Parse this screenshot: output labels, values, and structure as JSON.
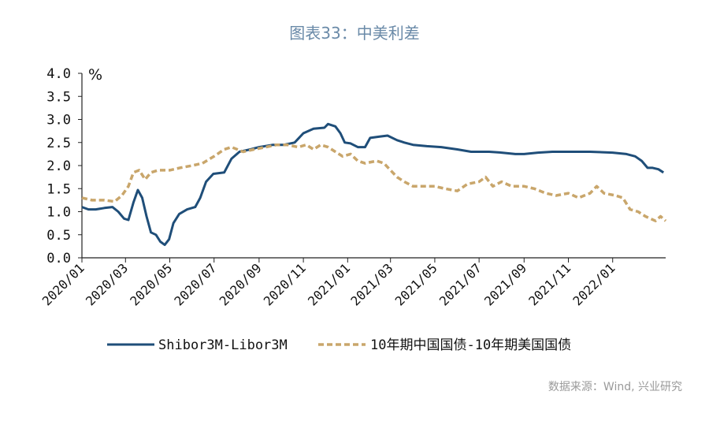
{
  "title": "图表33：中美利差",
  "source": "数据来源：Wind, 兴业研究",
  "colors": {
    "series1": "#1f4e79",
    "series2": "#c9a66b",
    "axis": "#222222"
  },
  "chart_data": {
    "type": "line",
    "ylabel": "%",
    "ylim": [
      0.0,
      4.0
    ],
    "yticks": [
      "4.0",
      "3.5",
      "3.0",
      "2.5",
      "2.0",
      "1.5",
      "1.0",
      "0.5",
      "0.0"
    ],
    "xlim": [
      "2020-01-01",
      "2022-03-15"
    ],
    "xticks": [
      {
        "date": "2020-01-01",
        "label": "2020/01"
      },
      {
        "date": "2020-03-01",
        "label": "2020/03"
      },
      {
        "date": "2020-05-01",
        "label": "2020/05"
      },
      {
        "date": "2020-07-01",
        "label": "2020/07"
      },
      {
        "date": "2020-09-01",
        "label": "2020/09"
      },
      {
        "date": "2020-11-01",
        "label": "2020/11"
      },
      {
        "date": "2021-01-01",
        "label": "2021/01"
      },
      {
        "date": "2021-03-01",
        "label": "2021/03"
      },
      {
        "date": "2021-05-01",
        "label": "2021/05"
      },
      {
        "date": "2021-07-01",
        "label": "2021/07"
      },
      {
        "date": "2021-09-01",
        "label": "2021/09"
      },
      {
        "date": "2021-11-01",
        "label": "2021/11"
      },
      {
        "date": "2022-01-01",
        "label": "2022/01"
      }
    ],
    "legend_position": "bottom",
    "series": [
      {
        "name": "Shibor3M-Libor3M",
        "style": "solid",
        "points": [
          [
            "2020-01-01",
            1.1
          ],
          [
            "2020-01-10",
            1.05
          ],
          [
            "2020-01-20",
            1.05
          ],
          [
            "2020-02-01",
            1.08
          ],
          [
            "2020-02-12",
            1.1
          ],
          [
            "2020-02-20",
            1.0
          ],
          [
            "2020-02-28",
            0.85
          ],
          [
            "2020-03-05",
            0.82
          ],
          [
            "2020-03-12",
            1.2
          ],
          [
            "2020-03-18",
            1.47
          ],
          [
            "2020-03-24",
            1.3
          ],
          [
            "2020-03-30",
            0.9
          ],
          [
            "2020-04-05",
            0.55
          ],
          [
            "2020-04-12",
            0.5
          ],
          [
            "2020-04-18",
            0.35
          ],
          [
            "2020-04-24",
            0.28
          ],
          [
            "2020-04-30",
            0.4
          ],
          [
            "2020-05-06",
            0.75
          ],
          [
            "2020-05-14",
            0.95
          ],
          [
            "2020-05-25",
            1.05
          ],
          [
            "2020-06-05",
            1.1
          ],
          [
            "2020-06-12",
            1.3
          ],
          [
            "2020-06-20",
            1.65
          ],
          [
            "2020-06-30",
            1.82
          ],
          [
            "2020-07-15",
            1.85
          ],
          [
            "2020-07-25",
            2.15
          ],
          [
            "2020-08-05",
            2.3
          ],
          [
            "2020-08-20",
            2.35
          ],
          [
            "2020-09-01",
            2.4
          ],
          [
            "2020-09-20",
            2.45
          ],
          [
            "2020-10-05",
            2.45
          ],
          [
            "2020-10-20",
            2.5
          ],
          [
            "2020-11-01",
            2.7
          ],
          [
            "2020-11-15",
            2.8
          ],
          [
            "2020-11-30",
            2.82
          ],
          [
            "2020-12-05",
            2.9
          ],
          [
            "2020-12-15",
            2.85
          ],
          [
            "2020-12-22",
            2.7
          ],
          [
            "2020-12-28",
            2.5
          ],
          [
            "2021-01-05",
            2.48
          ],
          [
            "2021-01-15",
            2.4
          ],
          [
            "2021-01-25",
            2.4
          ],
          [
            "2021-02-01",
            2.6
          ],
          [
            "2021-02-15",
            2.63
          ],
          [
            "2021-02-25",
            2.65
          ],
          [
            "2021-03-10",
            2.55
          ],
          [
            "2021-03-20",
            2.5
          ],
          [
            "2021-04-01",
            2.45
          ],
          [
            "2021-04-20",
            2.42
          ],
          [
            "2021-05-10",
            2.4
          ],
          [
            "2021-06-01",
            2.35
          ],
          [
            "2021-06-20",
            2.3
          ],
          [
            "2021-07-15",
            2.3
          ],
          [
            "2021-08-01",
            2.28
          ],
          [
            "2021-08-20",
            2.25
          ],
          [
            "2021-09-01",
            2.25
          ],
          [
            "2021-09-20",
            2.28
          ],
          [
            "2021-10-10",
            2.3
          ],
          [
            "2021-11-01",
            2.3
          ],
          [
            "2021-12-01",
            2.3
          ],
          [
            "2022-01-01",
            2.28
          ],
          [
            "2022-01-20",
            2.25
          ],
          [
            "2022-02-01",
            2.2
          ],
          [
            "2022-02-10",
            2.1
          ],
          [
            "2022-02-18",
            1.95
          ],
          [
            "2022-02-25",
            1.95
          ],
          [
            "2022-03-05",
            1.92
          ],
          [
            "2022-03-12",
            1.85
          ]
        ]
      },
      {
        "name": "10年期中国国债-10年期美国国债",
        "style": "dashed",
        "points": [
          [
            "2020-01-01",
            1.3
          ],
          [
            "2020-01-15",
            1.25
          ],
          [
            "2020-02-01",
            1.25
          ],
          [
            "2020-02-15",
            1.22
          ],
          [
            "2020-02-25",
            1.35
          ],
          [
            "2020-03-05",
            1.55
          ],
          [
            "2020-03-12",
            1.85
          ],
          [
            "2020-03-20",
            1.9
          ],
          [
            "2020-03-28",
            1.7
          ],
          [
            "2020-04-05",
            1.85
          ],
          [
            "2020-04-15",
            1.9
          ],
          [
            "2020-05-01",
            1.9
          ],
          [
            "2020-05-15",
            1.95
          ],
          [
            "2020-06-01",
            2.0
          ],
          [
            "2020-06-15",
            2.05
          ],
          [
            "2020-07-01",
            2.2
          ],
          [
            "2020-07-15",
            2.35
          ],
          [
            "2020-07-25",
            2.4
          ],
          [
            "2020-08-10",
            2.3
          ],
          [
            "2020-08-25",
            2.35
          ],
          [
            "2020-09-10",
            2.4
          ],
          [
            "2020-09-25",
            2.45
          ],
          [
            "2020-10-10",
            2.45
          ],
          [
            "2020-10-25",
            2.4
          ],
          [
            "2020-11-05",
            2.45
          ],
          [
            "2020-11-15",
            2.35
          ],
          [
            "2020-11-25",
            2.45
          ],
          [
            "2020-12-05",
            2.4
          ],
          [
            "2020-12-15",
            2.3
          ],
          [
            "2020-12-25",
            2.2
          ],
          [
            "2021-01-05",
            2.25
          ],
          [
            "2021-01-15",
            2.1
          ],
          [
            "2021-01-25",
            2.05
          ],
          [
            "2021-02-10",
            2.1
          ],
          [
            "2021-02-20",
            2.05
          ],
          [
            "2021-03-01",
            1.9
          ],
          [
            "2021-03-10",
            1.75
          ],
          [
            "2021-03-20",
            1.65
          ],
          [
            "2021-04-01",
            1.55
          ],
          [
            "2021-04-15",
            1.55
          ],
          [
            "2021-05-01",
            1.55
          ],
          [
            "2021-05-15",
            1.5
          ],
          [
            "2021-06-01",
            1.45
          ],
          [
            "2021-06-15",
            1.6
          ],
          [
            "2021-07-01",
            1.65
          ],
          [
            "2021-07-10",
            1.75
          ],
          [
            "2021-07-20",
            1.55
          ],
          [
            "2021-08-01",
            1.65
          ],
          [
            "2021-08-15",
            1.55
          ],
          [
            "2021-09-01",
            1.55
          ],
          [
            "2021-09-15",
            1.5
          ],
          [
            "2021-10-01",
            1.4
          ],
          [
            "2021-10-15",
            1.35
          ],
          [
            "2021-11-01",
            1.4
          ],
          [
            "2021-11-15",
            1.3
          ],
          [
            "2021-12-01",
            1.4
          ],
          [
            "2021-12-10",
            1.55
          ],
          [
            "2021-12-20",
            1.4
          ],
          [
            "2022-01-05",
            1.35
          ],
          [
            "2022-01-15",
            1.3
          ],
          [
            "2022-01-25",
            1.05
          ],
          [
            "2022-02-05",
            1.0
          ],
          [
            "2022-02-15",
            0.9
          ],
          [
            "2022-02-22",
            0.85
          ],
          [
            "2022-03-01",
            0.8
          ],
          [
            "2022-03-08",
            0.9
          ],
          [
            "2022-03-15",
            0.8
          ]
        ]
      }
    ]
  }
}
